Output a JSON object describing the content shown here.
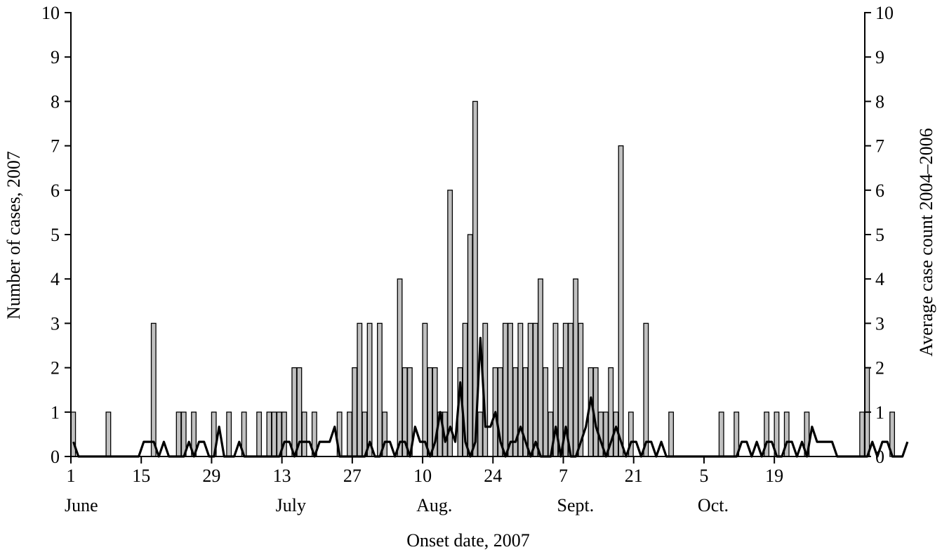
{
  "chart_data": {
    "type": "bar",
    "title": "",
    "xlabel": "Onset date, 2007",
    "ylabel": "Number of cases, 2007",
    "ylabel_right": "Average case count 2004–2006",
    "ylim": [
      0,
      10
    ],
    "ylim_right": [
      0,
      10
    ],
    "yticks": [
      "0",
      "1",
      "2",
      "3",
      "4",
      "5",
      "6",
      "7",
      "8",
      "9",
      "10"
    ],
    "x_start": "2007-06-01",
    "x_end": "2007-11-05",
    "xticks": [
      {
        "day": "1",
        "month": "June"
      },
      {
        "day": "15",
        "month": ""
      },
      {
        "day": "29",
        "month": ""
      },
      {
        "day": "13",
        "month": "July"
      },
      {
        "day": "27",
        "month": ""
      },
      {
        "day": "10",
        "month": "Aug."
      },
      {
        "day": "24",
        "month": ""
      },
      {
        "day": "7",
        "month": "Sept."
      },
      {
        "day": "21",
        "month": ""
      },
      {
        "day": "5",
        "month": "Oct."
      },
      {
        "day": "19",
        "month": ""
      }
    ],
    "series": [
      {
        "type": "bar",
        "axis": "left",
        "values": [
          1,
          0,
          0,
          0,
          0,
          0,
          0,
          1,
          0,
          0,
          0,
          0,
          0,
          0,
          0,
          0,
          3,
          0,
          0,
          0,
          0,
          1,
          1,
          0,
          1,
          0,
          0,
          0,
          1,
          0,
          0,
          1,
          0,
          0,
          1,
          0,
          0,
          1,
          0,
          1,
          1,
          1,
          1,
          0,
          2,
          2,
          1,
          0,
          1,
          0,
          0,
          0,
          0,
          1,
          0,
          1,
          2,
          3,
          1,
          3,
          0,
          3,
          1,
          0,
          0,
          4,
          2,
          2,
          0,
          0,
          3,
          2,
          2,
          1,
          1,
          6,
          0,
          2,
          3,
          5,
          8,
          1,
          3,
          0,
          2,
          2,
          3,
          3,
          2,
          3,
          2,
          3,
          3,
          4,
          2,
          1,
          3,
          2,
          3,
          3,
          4,
          3,
          0,
          2,
          2,
          1,
          1,
          2,
          1,
          7,
          0,
          1,
          0,
          0,
          3,
          0,
          0,
          0,
          0,
          1,
          0,
          0,
          0,
          0,
          0,
          0,
          0,
          0,
          0,
          1,
          0,
          0,
          1,
          0,
          0,
          0,
          0,
          0,
          1,
          0,
          1,
          0,
          1,
          0,
          0,
          0,
          1,
          0,
          0,
          0,
          0,
          0,
          0,
          0,
          0,
          0,
          0,
          1,
          2,
          0,
          0,
          0,
          0,
          1,
          0
        ]
      },
      {
        "type": "line",
        "axis": "right",
        "values": [
          0.33,
          0,
          0,
          0,
          0,
          0,
          0,
          0,
          0,
          0,
          0,
          0,
          0,
          0,
          0.33,
          0.33,
          0.33,
          0,
          0.33,
          0,
          0,
          0,
          0,
          0.33,
          0,
          0.33,
          0.33,
          0,
          0,
          0.67,
          0,
          0,
          0,
          0.33,
          0,
          0,
          0,
          0,
          0,
          0,
          0,
          0,
          0.33,
          0.33,
          0,
          0.33,
          0.33,
          0.33,
          0,
          0.33,
          0.33,
          0.33,
          0.67,
          0,
          0,
          0,
          0,
          0,
          0,
          0.33,
          0,
          0,
          0.33,
          0.33,
          0,
          0.33,
          0.33,
          0,
          0.67,
          0.33,
          0.33,
          0,
          0.33,
          1,
          0.33,
          0.67,
          0.33,
          1.67,
          0.33,
          0,
          0.33,
          2.67,
          0.67,
          0.67,
          1,
          0.33,
          0,
          0.33,
          0.33,
          0.67,
          0.33,
          0,
          0.33,
          0,
          0,
          0,
          0.67,
          0,
          0.67,
          0,
          0,
          0.33,
          0.67,
          1.33,
          0.67,
          0.33,
          0,
          0.33,
          0.67,
          0.33,
          0,
          0.33,
          0.33,
          0,
          0.33,
          0.33,
          0,
          0.33,
          0,
          0,
          0,
          0,
          0,
          0,
          0,
          0,
          0,
          0,
          0,
          0,
          0,
          0,
          0,
          0.33,
          0.33,
          0,
          0.33,
          0,
          0.33,
          0.33,
          0,
          0,
          0.33,
          0.33,
          0,
          0.33,
          0,
          0.67,
          0.33,
          0.33,
          0.33,
          0.33,
          0,
          0,
          0,
          0,
          0,
          0,
          0,
          0.33,
          0,
          0.33,
          0.33,
          0,
          0,
          0,
          0.33
        ]
      }
    ]
  }
}
